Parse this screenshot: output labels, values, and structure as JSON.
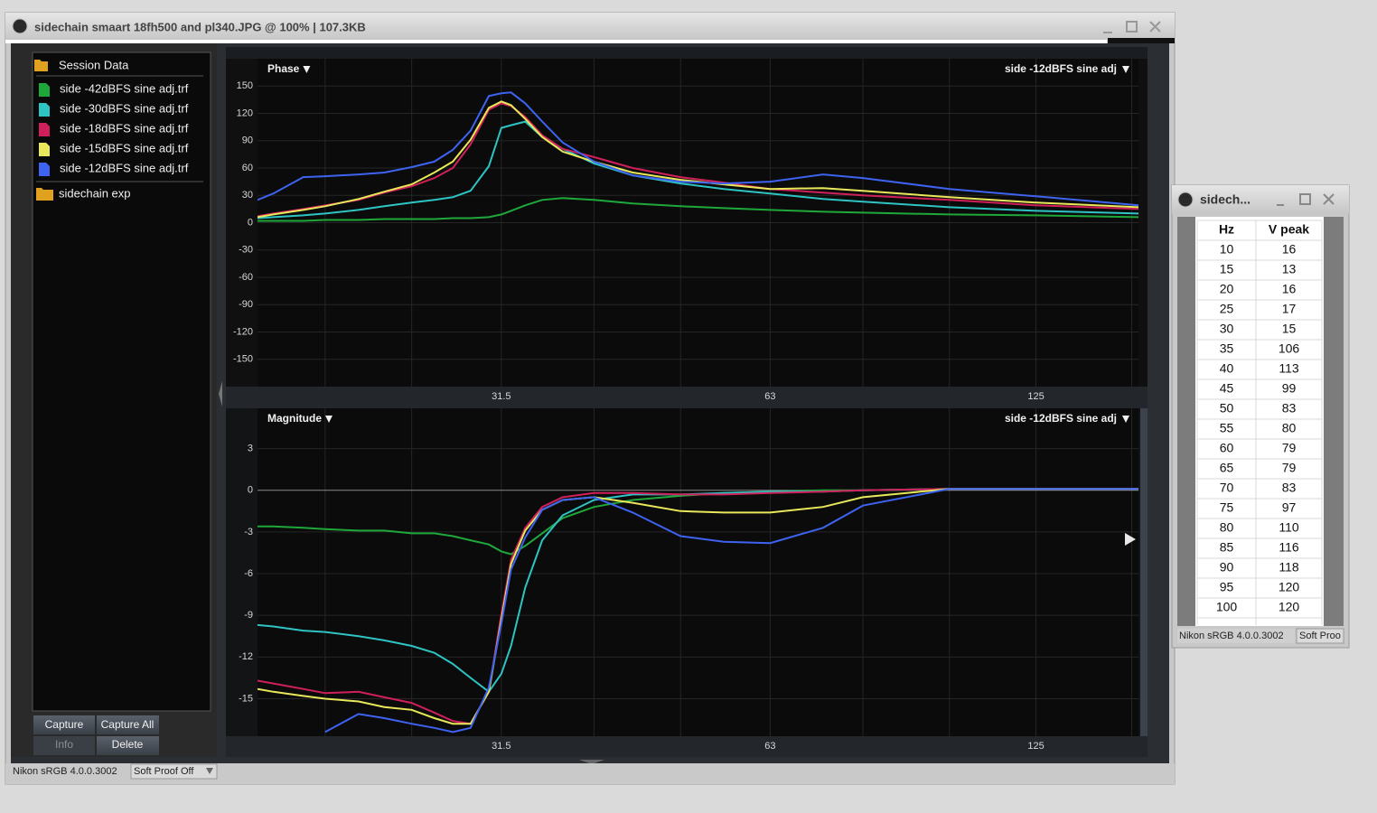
{
  "window": {
    "title": "sidechain smaart 18fh500 and pl340.JPG @ 100% | 107.3KB"
  },
  "sidebar": {
    "folder": "Session Data",
    "subfolder": "sidechain exp"
  },
  "buttons": [
    "Capture",
    "Capture All",
    "Info",
    "Delete"
  ],
  "status": {
    "profile": "Nikon sRGB 4.0.0.3002",
    "soft_proof": "Soft Proof Off"
  },
  "chart_data": [
    {
      "type": "line",
      "title": "Phase",
      "trace_label": "side -12dBFS sine adj",
      "xscale": "log",
      "grid": true,
      "x": [
        16.8,
        17.5,
        18.9,
        20,
        21.8,
        23.3,
        25,
        26.5,
        27.8,
        29.1,
        30.5,
        31.5,
        32.3,
        33.5,
        35,
        36.9,
        40,
        44.2,
        50,
        55.9,
        63,
        72.2,
        80,
        100,
        125,
        162.8
      ],
      "xlim": [
        16.8,
        162.8
      ],
      "xticks": [
        31.5,
        63,
        125
      ],
      "xgrid": [
        20,
        25,
        40,
        50,
        80,
        100,
        160
      ],
      "ylim": [
        -180,
        180
      ],
      "yticks": [
        150,
        120,
        90,
        60,
        30,
        0,
        -30,
        -60,
        -90,
        -120,
        -150
      ],
      "series": [
        {
          "name": "side -42dBFS sine adj.trf",
          "color": "#1fa83a",
          "values": [
            2,
            2,
            2,
            3,
            3,
            4,
            4,
            4,
            5,
            5,
            6,
            9,
            13,
            19,
            25,
            27,
            25,
            21,
            18,
            16,
            14,
            12,
            11,
            9,
            8,
            6
          ]
        },
        {
          "name": "side -30dBFS sine adj.trf",
          "color": "#2ec4c4",
          "values": [
            5,
            6,
            8,
            10,
            14,
            18,
            22,
            25,
            28,
            35,
            62,
            104,
            107,
            111,
            94,
            81,
            65,
            52,
            43,
            37,
            32,
            26,
            23,
            17,
            13,
            10
          ]
        },
        {
          "name": "side -18dBFS sine adj.trf",
          "color": "#d0205a",
          "values": [
            7,
            10,
            15,
            19,
            25,
            33,
            40,
            49,
            60,
            86,
            124,
            131,
            128,
            116,
            96,
            81,
            72,
            60,
            50,
            44,
            37,
            33,
            30,
            25,
            19,
            15
          ]
        },
        {
          "name": "side -15dBFS sine adj.trf",
          "color": "#e8e85a",
          "values": [
            6,
            9,
            14,
            18,
            26,
            34,
            42,
            55,
            67,
            91,
            126,
            133,
            129,
            114,
            94,
            78,
            67,
            55,
            47,
            42,
            37,
            38,
            35,
            28,
            22,
            17
          ]
        },
        {
          "name": "side -12dBFS sine adj.trf",
          "color": "#3d63f0",
          "values": [
            25,
            32,
            50,
            51,
            53,
            55,
            61,
            67,
            80,
            101,
            139,
            142,
            143,
            131,
            111,
            88,
            67,
            52,
            45,
            43,
            45,
            53,
            49,
            37,
            29,
            19
          ]
        }
      ]
    },
    {
      "type": "line",
      "title": "Magnitude",
      "trace_label": "side -12dBFS sine adj",
      "xscale": "log",
      "grid": true,
      "zero_line": true,
      "x": [
        16.8,
        17.5,
        18.9,
        20,
        21.8,
        23.3,
        25,
        26.5,
        27.8,
        29.1,
        30.5,
        31.5,
        32.3,
        33.5,
        35,
        36.9,
        40,
        44.2,
        50,
        55.9,
        63,
        72.2,
        80,
        100,
        125,
        162.8
      ],
      "xlim": [
        16.8,
        162.8
      ],
      "xticks": [
        31.5,
        63,
        125
      ],
      "xgrid": [
        20,
        25,
        40,
        50,
        80,
        100,
        160
      ],
      "ylim": [
        -17.7,
        5.9
      ],
      "yticks": [
        3,
        0,
        -3,
        -6,
        -9,
        -12,
        -15
      ],
      "series": [
        {
          "color": "#1fa83a",
          "values": [
            -2.6,
            -2.6,
            -2.7,
            -2.8,
            -2.9,
            -2.9,
            -3.1,
            -3.1,
            -3.3,
            -3.6,
            -3.9,
            -4.4,
            -4.6,
            -4,
            -3.1,
            -2,
            -1.2,
            -0.7,
            -0.4,
            -0.2,
            -0.1,
            0,
            0,
            0.1,
            0.1,
            0.1
          ]
        },
        {
          "color": "#2ec4c4",
          "values": [
            -9.7,
            -9.8,
            -10.1,
            -10.2,
            -10.5,
            -10.8,
            -11.2,
            -11.7,
            -12.5,
            -13.5,
            -14.5,
            -13.2,
            -11.2,
            -7,
            -3.6,
            -1.8,
            -0.7,
            -0.3,
            -0.3,
            -0.2,
            -0.1,
            -0.1,
            0,
            0.1,
            0.1,
            0.1
          ]
        },
        {
          "color": "#d0205a",
          "values": [
            -13.7,
            -13.9,
            -14.3,
            -14.6,
            -14.5,
            -14.9,
            -15.3,
            -16,
            -16.6,
            -16.8,
            -14.5,
            -8.9,
            -5,
            -2.7,
            -1.2,
            -0.5,
            -0.2,
            -0.2,
            -0.3,
            -0.3,
            -0.2,
            -0.1,
            0,
            0.1,
            0.1,
            0.1
          ]
        },
        {
          "color": "#e8e85a",
          "values": [
            -14.3,
            -14.5,
            -14.8,
            -15,
            -15.2,
            -15.6,
            -15.8,
            -16.4,
            -16.8,
            -16.8,
            -14.5,
            -9.3,
            -5.3,
            -2.9,
            -1.4,
            -0.7,
            -0.5,
            -0.9,
            -1.5,
            -1.6,
            -1.6,
            -1.2,
            -0.5,
            0.1,
            0.1,
            0.1
          ]
        },
        {
          "color": "#3d63f0",
          "values": [
            null,
            null,
            null,
            -17.4,
            -16.1,
            -16.4,
            -16.8,
            -17.1,
            -17.4,
            -17.1,
            -14.2,
            -9.6,
            -5.7,
            -3.4,
            -1.4,
            -0.7,
            -0.5,
            -1.6,
            -3.3,
            -3.7,
            -3.8,
            -2.7,
            -1.1,
            0.1,
            0.1,
            0.1
          ]
        }
      ]
    }
  ],
  "table_window": {
    "title": "sidech...",
    "header": [
      "Hz",
      "V peak"
    ],
    "rows": [
      [
        10,
        16
      ],
      [
        15,
        13
      ],
      [
        20,
        16
      ],
      [
        25,
        17
      ],
      [
        30,
        15
      ],
      [
        35,
        106
      ],
      [
        40,
        113
      ],
      [
        45,
        99
      ],
      [
        50,
        83
      ],
      [
        55,
        80
      ],
      [
        60,
        79
      ],
      [
        65,
        79
      ],
      [
        70,
        83
      ],
      [
        75,
        97
      ],
      [
        80,
        110
      ],
      [
        85,
        116
      ],
      [
        90,
        118
      ],
      [
        95,
        120
      ],
      [
        100,
        120
      ]
    ],
    "status": {
      "profile": "Nikon sRGB 4.0.0.3002",
      "soft_proof": "Soft Proo"
    }
  }
}
